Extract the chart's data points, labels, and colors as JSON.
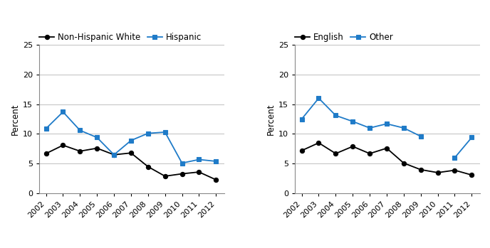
{
  "years": [
    2002,
    2003,
    2004,
    2005,
    2006,
    2007,
    2008,
    2009,
    2010,
    2011,
    2012
  ],
  "left": {
    "series": [
      {
        "label": "Non-Hispanic White",
        "color": "#000000",
        "marker": "o",
        "marker_fill": "#000000",
        "values": [
          6.7,
          8.1,
          7.1,
          7.6,
          6.5,
          6.8,
          4.5,
          2.9,
          3.3,
          3.6,
          2.3
        ]
      },
      {
        "label": "Hispanic",
        "color": "#1f7bc8",
        "marker": "s",
        "marker_fill": "#1f7bc8",
        "values": [
          10.9,
          13.7,
          10.6,
          9.4,
          6.5,
          8.9,
          10.1,
          10.3,
          5.1,
          5.7,
          5.4
        ]
      }
    ],
    "ylabel": "Percent",
    "ylim": [
      0,
      25
    ],
    "yticks": [
      0,
      5,
      10,
      15,
      20,
      25
    ]
  },
  "right": {
    "series": [
      {
        "label": "English",
        "color": "#000000",
        "marker": "o",
        "marker_fill": "#000000",
        "values": [
          7.2,
          8.5,
          6.7,
          7.9,
          6.7,
          7.6,
          5.1,
          4.0,
          3.5,
          3.9,
          3.1
        ]
      },
      {
        "label": "Other",
        "color": "#1f7bc8",
        "marker": "s",
        "marker_fill": "#1f7bc8",
        "values": [
          12.5,
          16.0,
          13.1,
          12.1,
          11.0,
          11.7,
          11.0,
          9.6,
          null,
          6.0,
          9.4
        ]
      }
    ],
    "ylabel": "Percent",
    "ylim": [
      0,
      25
    ],
    "yticks": [
      0,
      5,
      10,
      15,
      20,
      25
    ]
  },
  "background_color": "#ffffff",
  "grid_color": "#c0c0c0",
  "fontsize_legend": 8.5,
  "fontsize_axis_label": 8.5,
  "fontsize_tick": 8.0
}
